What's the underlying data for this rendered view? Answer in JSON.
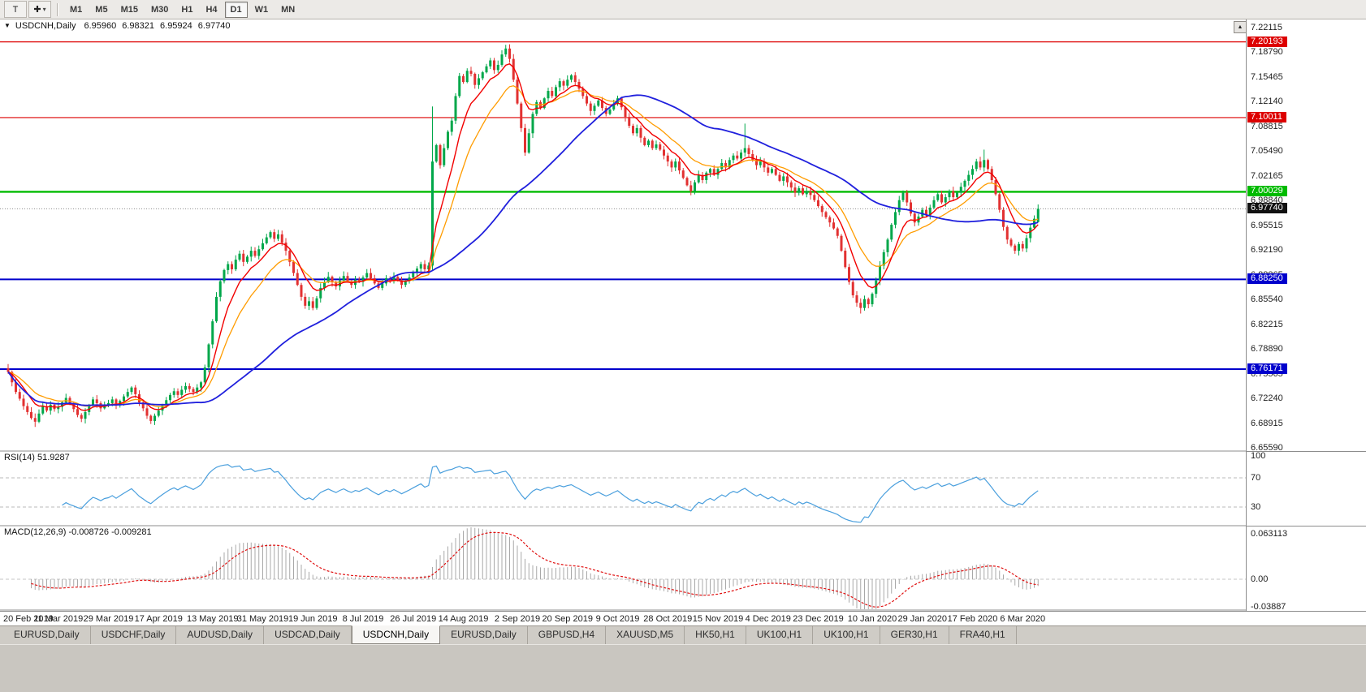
{
  "toolbar": {
    "tools": [
      {
        "name": "text-tool",
        "glyph": "T",
        "dropdown": false
      },
      {
        "name": "crosshair-tool",
        "glyph": "✚",
        "dropdown": true
      }
    ],
    "dropdown_glyph": "▾",
    "timeframes": [
      "M1",
      "M5",
      "M15",
      "M30",
      "H1",
      "H4",
      "D1",
      "W1",
      "MN"
    ],
    "active_timeframe": "D1"
  },
  "chart_header": {
    "collapse_arrow": "▼",
    "symbol": "USDCNH,Daily",
    "open": "6.95960",
    "high": "6.98321",
    "low": "6.95924",
    "close": "6.97740"
  },
  "scroll_button_glyph": "▲",
  "price_axis": {
    "ticks": [
      "7.22115",
      "7.18790",
      "7.15465",
      "7.12140",
      "7.08815",
      "7.05490",
      "7.02165",
      "6.98840",
      "6.95515",
      "6.92190",
      "6.88865",
      "6.85540",
      "6.82215",
      "6.78890",
      "6.75565",
      "6.72240",
      "6.68915",
      "6.65590"
    ]
  },
  "date_axis": [
    "20 Feb 2019",
    "11 Mar 2019",
    "29 Mar 2019",
    "17 Apr 2019",
    "13 May 2019",
    "31 May 2019",
    "19 Jun 2019",
    "8 Jul 2019",
    "26 Jul 2019",
    "14 Aug 2019",
    "2 Sep 2019",
    "20 Sep 2019",
    "9 Oct 2019",
    "28 Oct 2019",
    "15 Nov 2019",
    "4 Dec 2019",
    "23 Dec 2019",
    "10 Jan 2020",
    "29 Jan 2020",
    "17 Feb 2020",
    "6 Mar 2020"
  ],
  "rsi_panel": {
    "name": "RSI(14)",
    "value": "51.9287",
    "axis": [
      "100",
      "70",
      "30"
    ],
    "levels": [
      70,
      30
    ],
    "line_color": "#4a9fdd"
  },
  "macd_panel": {
    "name": "MACD(12,26,9)",
    "value": "-0.008726 -0.009281",
    "axis": [
      "0.063113",
      "0.00",
      "-0.03887"
    ],
    "histogram_color": "#a8a8a8",
    "signal_color": "#e01010"
  },
  "tabs": {
    "items": [
      "EURUSD,Daily",
      "USDCHF,Daily",
      "AUDUSD,Daily",
      "USDCAD,Daily",
      "USDCNH,Daily",
      "EURUSD,Daily",
      "GBPUSD,H4",
      "XAUUSD,M5",
      "HK50,H1",
      "UK100,H1",
      "UK100,H1",
      "GER30,H1",
      "FRA40,H1"
    ],
    "active_index": 4
  },
  "chart_data": {
    "type": "candlestick",
    "symbol": "USDCNH",
    "timeframe": "Daily",
    "up_color": "#00a74a",
    "down_color": "#e23131",
    "x_labels": [
      "20 Feb 2019",
      "11 Mar 2019",
      "29 Mar 2019",
      "17 Apr 2019",
      "13 May 2019",
      "31 May 2019",
      "19 Jun 2019",
      "8 Jul 2019",
      "26 Jul 2019",
      "14 Aug 2019",
      "2 Sep 2019",
      "20 Sep 2019",
      "9 Oct 2019",
      "28 Oct 2019",
      "15 Nov 2019",
      "4 Dec 2019",
      "23 Dec 2019",
      "10 Jan 2020",
      "29 Jan 2020",
      "17 Feb 2020",
      "6 Mar 2020"
    ],
    "price_range": {
      "min": 6.6559,
      "max": 7.22115
    },
    "closes": [
      6.758,
      6.744,
      6.731,
      6.722,
      6.712,
      6.704,
      6.696,
      6.691,
      6.702,
      6.712,
      6.706,
      6.714,
      6.708,
      6.711,
      6.717,
      6.723,
      6.715,
      6.708,
      6.7,
      6.695,
      6.704,
      6.713,
      6.721,
      6.716,
      6.709,
      6.714,
      6.716,
      6.721,
      6.713,
      6.719,
      6.725,
      6.731,
      6.737,
      6.728,
      6.717,
      6.709,
      6.699,
      6.692,
      6.699,
      6.706,
      6.713,
      6.72,
      6.727,
      6.732,
      6.727,
      6.734,
      6.739,
      6.735,
      6.731,
      6.737,
      6.744,
      6.764,
      6.795,
      6.826,
      6.859,
      6.88,
      6.895,
      6.903,
      6.896,
      6.909,
      6.917,
      6.906,
      6.913,
      6.921,
      6.914,
      6.923,
      6.931,
      6.939,
      6.946,
      6.937,
      6.943,
      6.932,
      6.921,
      6.906,
      6.891,
      6.875,
      6.859,
      6.847,
      6.853,
      6.844,
      6.857,
      6.871,
      6.879,
      6.886,
      6.879,
      6.873,
      6.881,
      6.887,
      6.88,
      6.875,
      6.882,
      6.879,
      6.885,
      6.891,
      6.884,
      6.877,
      6.871,
      6.877,
      6.884,
      6.88,
      6.886,
      6.881,
      6.875,
      6.88,
      6.885,
      6.891,
      6.897,
      6.903,
      6.896,
      6.901,
      7.041,
      7.063,
      7.036,
      7.059,
      7.081,
      7.096,
      7.129,
      7.156,
      7.148,
      7.163,
      7.159,
      7.144,
      7.153,
      7.161,
      7.169,
      7.177,
      7.164,
      7.171,
      7.185,
      7.193,
      7.179,
      7.151,
      7.119,
      7.086,
      7.053,
      7.079,
      7.105,
      7.121,
      7.113,
      7.126,
      7.136,
      7.129,
      7.141,
      7.149,
      7.143,
      7.151,
      7.157,
      7.148,
      7.139,
      7.129,
      7.119,
      7.109,
      7.116,
      7.123,
      7.113,
      7.105,
      7.111,
      7.119,
      7.126,
      7.114,
      7.101,
      7.089,
      7.079,
      7.086,
      7.073,
      7.063,
      7.069,
      7.059,
      7.064,
      7.057,
      7.049,
      7.041,
      7.033,
      7.041,
      7.029,
      7.019,
      7.009,
      7.001,
      7.013,
      7.023,
      7.016,
      7.026,
      7.031,
      7.023,
      7.031,
      7.039,
      7.033,
      7.043,
      7.049,
      7.045,
      7.053,
      7.059,
      7.051,
      7.043,
      7.036,
      7.041,
      7.033,
      7.026,
      7.031,
      7.023,
      7.015,
      7.021,
      7.013,
      7.006,
      6.999,
      7.005,
      6.997,
      7.001,
      6.996,
      6.989,
      6.981,
      6.973,
      6.966,
      6.959,
      6.951,
      6.941,
      6.921,
      6.899,
      6.879,
      6.861,
      6.851,
      6.844,
      6.856,
      6.849,
      6.863,
      6.881,
      6.901,
      6.919,
      6.936,
      6.956,
      6.973,
      6.989,
      6.999,
      6.986,
      6.971,
      6.959,
      6.967,
      6.976,
      6.969,
      6.979,
      6.989,
      6.997,
      6.986,
      6.993,
      7.001,
      6.993,
      6.999,
      7.007,
      7.015,
      7.023,
      7.031,
      7.041,
      7.033,
      7.043,
      7.031,
      7.016,
      6.997,
      6.976,
      6.953,
      6.936,
      6.928,
      6.921,
      6.93,
      6.924,
      6.938,
      6.952,
      6.964,
      6.977
    ],
    "last_candle": {
      "open": 6.9596,
      "high": 6.98321,
      "low": 6.95924,
      "close": 6.9774
    },
    "wick_overrides": {
      "7": {
        "low": 6.684
      },
      "110": {
        "high": 7.115
      },
      "129": {
        "high": 7.198
      },
      "191": {
        "high": 7.092
      },
      "221": {
        "low": 6.8365
      },
      "253": {
        "high": 7.057
      }
    },
    "levels": [
      {
        "label": "7.20193",
        "price": 7.20193,
        "color": "#dd0000",
        "width": 1.2,
        "style": "solid"
      },
      {
        "label": "7.10011",
        "price": 7.10011,
        "color": "#dd0000",
        "width": 1.2,
        "style": "solid"
      },
      {
        "label": "7.00029",
        "price": 7.00029,
        "color": "#00bb00",
        "width": 2.4,
        "style": "solid"
      },
      {
        "label": "6.97740",
        "price": 6.9774,
        "color": "#111111",
        "line_color": "#8c8c8c",
        "width": 1,
        "style": "dotted",
        "current": true
      },
      {
        "label": "6.88250",
        "price": 6.8825,
        "color": "#0000cc",
        "width": 2,
        "style": "solid"
      },
      {
        "label": "6.76171",
        "price": 6.76171,
        "color": "#0000cc",
        "width": 2,
        "style": "solid"
      }
    ],
    "moving_averages": [
      {
        "period": 16,
        "method": "ema",
        "color": "#ff9c00",
        "width": 1.3,
        "name": "ma-orange"
      },
      {
        "period": 8,
        "method": "ema",
        "color": "#f20000",
        "width": 1.4,
        "name": "ma-red"
      },
      {
        "period": 50,
        "method": "sma",
        "color": "#2020dd",
        "width": 1.8,
        "name": "ma-blue"
      }
    ],
    "indicators": [
      {
        "type": "rsi",
        "params": "14",
        "displayed_value": "51.9287"
      },
      {
        "type": "macd",
        "params": "12,26,9",
        "displayed_value": "-0.008726 -0.009281"
      }
    ]
  }
}
